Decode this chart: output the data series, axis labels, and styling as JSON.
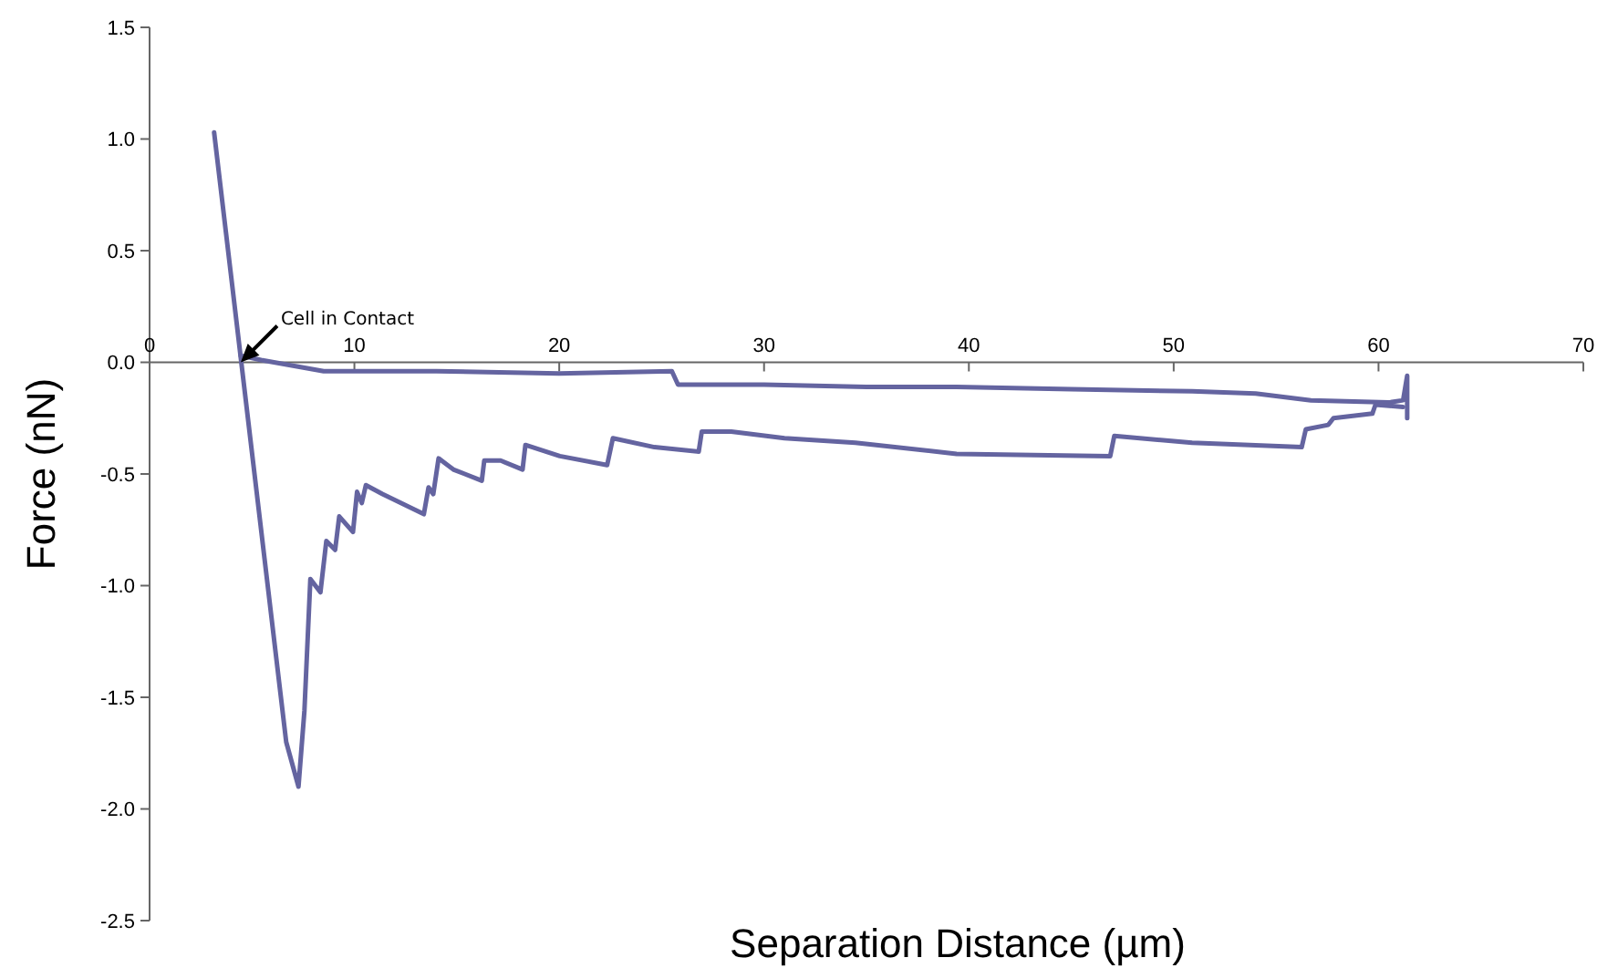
{
  "chart_data": {
    "type": "line",
    "xlabel": "Separation Distance (µm)",
    "ylabel": "Force (nN)",
    "xlim": [
      0,
      70
    ],
    "ylim": [
      -2.5,
      1.5
    ],
    "xticks": [
      0,
      10,
      20,
      30,
      40,
      50,
      60,
      70
    ],
    "yticks": [
      {
        "value": -2.5,
        "label": "-2.5"
      },
      {
        "value": -2,
        "label": "-2.0"
      },
      {
        "value": -1.5,
        "label": "-1.5"
      },
      {
        "value": -1,
        "label": "-1.0"
      },
      {
        "value": -0.5,
        "label": "-0.5"
      },
      {
        "value": 0,
        "label": "0.0"
      },
      {
        "value": 0.5,
        "label": "0.5"
      },
      {
        "value": 1,
        "label": "1.0"
      },
      {
        "value": 1.5,
        "label": "1.5"
      }
    ],
    "grid": false,
    "annotations": [
      {
        "text": "Cell in Contact",
        "x": 4.45,
        "y": 0
      }
    ],
    "series": [
      {
        "color": "#6464a0",
        "x": [
          4.45,
          5.45,
          8.5,
          14,
          20.0,
          25.5,
          25.8,
          30,
          35,
          39.4,
          45,
          50.9,
          54,
          56.7,
          60.5,
          61.2,
          61.4,
          61.4
        ],
        "values": [
          0.03,
          0.01,
          -0.04,
          -0.04,
          -0.05,
          -0.04,
          -0.1,
          -0.1,
          -0.11,
          -0.11,
          -0.12,
          -0.13,
          -0.14,
          -0.17,
          -0.18,
          -0.17,
          -0.06,
          -0.25
        ]
      },
      {
        "color": "#6464a0",
        "x": [
          3.15,
          6.67,
          7.27,
          7.56,
          7.85,
          8.34,
          8.63,
          9.06,
          9.26,
          9.93,
          10.13,
          10.36,
          10.56,
          11.37,
          13.39,
          13.62,
          13.85,
          14.11,
          14.83,
          16.22,
          16.34,
          17.14,
          18.21,
          18.35,
          20.03,
          22.34,
          22.62,
          24.65,
          26.81,
          26.96,
          28.4,
          31.0,
          34.46,
          39.4,
          46.9,
          47.1,
          50.9,
          56.25,
          56.45,
          57.55,
          57.8,
          59.7,
          59.85,
          61.2
        ],
        "values": [
          1.03,
          -1.7,
          -1.9,
          -1.56,
          -0.97,
          -1.03,
          -0.8,
          -0.84,
          -0.69,
          -0.76,
          -0.58,
          -0.63,
          -0.55,
          -0.59,
          -0.68,
          -0.56,
          -0.59,
          -0.43,
          -0.48,
          -0.53,
          -0.44,
          -0.44,
          -0.48,
          -0.37,
          -0.42,
          -0.46,
          -0.34,
          -0.38,
          -0.4,
          -0.31,
          -0.31,
          -0.34,
          -0.36,
          -0.41,
          -0.42,
          -0.33,
          -0.36,
          -0.38,
          -0.3,
          -0.28,
          -0.25,
          -0.23,
          -0.19,
          -0.2
        ]
      }
    ]
  }
}
